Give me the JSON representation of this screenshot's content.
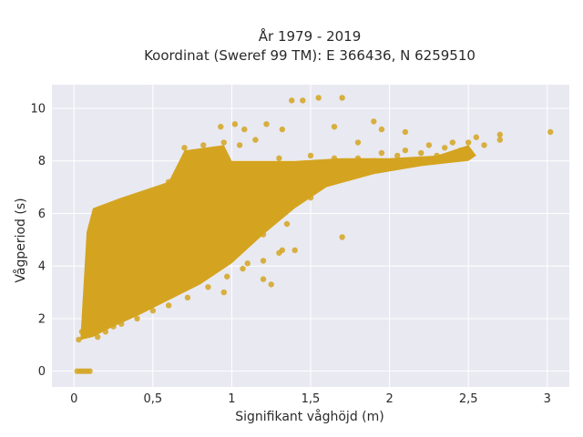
{
  "chart_data": {
    "type": "scatter",
    "title_lines": [
      "År 1979 - 2019",
      "Koordinat (Sweref 99 TM): E 366436, N 6259510"
    ],
    "xlabel": "Signifikant våghöjd (m)",
    "ylabel": "Vågperiod (s)",
    "xlim": [
      -0.14,
      3.14
    ],
    "ylim": [
      -0.6,
      10.9
    ],
    "xticks": [
      0,
      0.5,
      1,
      1.5,
      2,
      2.5,
      3
    ],
    "xtick_labels": [
      "0",
      "0,5",
      "1",
      "1,5",
      "2",
      "2,5",
      "3"
    ],
    "yticks": [
      0,
      2,
      4,
      6,
      8,
      10
    ],
    "ytick_labels": [
      "0",
      "2",
      "4",
      "6",
      "8",
      "10"
    ],
    "grid": true,
    "legend": "none",
    "colors": {
      "marker": "#d4a420",
      "plot_bg": "#e9e9f1",
      "grid": "#ffffff"
    },
    "points": [
      [
        0.02,
        0
      ],
      [
        0.04,
        0
      ],
      [
        0.06,
        0
      ],
      [
        0.08,
        0
      ],
      [
        0.1,
        0
      ],
      [
        0.03,
        1.2
      ],
      [
        0.05,
        1.5
      ],
      [
        0.07,
        2.0
      ],
      [
        0.08,
        2.6
      ],
      [
        0.09,
        3.2
      ],
      [
        0.1,
        3.8
      ],
      [
        0.11,
        4.5
      ],
      [
        0.12,
        5.2
      ],
      [
        0.13,
        5.8
      ],
      [
        0.14,
        6.0
      ],
      [
        0.15,
        1.3
      ],
      [
        0.15,
        2.2
      ],
      [
        0.16,
        3.0
      ],
      [
        0.17,
        4.0
      ],
      [
        0.18,
        5.0
      ],
      [
        0.19,
        5.8
      ],
      [
        0.2,
        6.2
      ],
      [
        0.2,
        1.5
      ],
      [
        0.25,
        1.7
      ],
      [
        0.25,
        2.8
      ],
      [
        0.26,
        3.8
      ],
      [
        0.27,
        4.8
      ],
      [
        0.28,
        5.6
      ],
      [
        0.3,
        6.3
      ],
      [
        0.3,
        1.8
      ],
      [
        0.32,
        2.5
      ],
      [
        0.35,
        3.5
      ],
      [
        0.36,
        4.5
      ],
      [
        0.38,
        5.5
      ],
      [
        0.4,
        6.4
      ],
      [
        0.4,
        2.0
      ],
      [
        0.42,
        3.0
      ],
      [
        0.45,
        4.2
      ],
      [
        0.47,
        5.0
      ],
      [
        0.5,
        6.5
      ],
      [
        0.5,
        2.3
      ],
      [
        0.52,
        3.4
      ],
      [
        0.55,
        4.6
      ],
      [
        0.57,
        5.6
      ],
      [
        0.6,
        6.8
      ],
      [
        0.6,
        7.2
      ],
      [
        0.6,
        2.5
      ],
      [
        0.62,
        3.6
      ],
      [
        0.65,
        4.8
      ],
      [
        0.67,
        5.8
      ],
      [
        0.7,
        6.9
      ],
      [
        0.7,
        8.5
      ],
      [
        0.72,
        2.8
      ],
      [
        0.75,
        3.9
      ],
      [
        0.77,
        5.0
      ],
      [
        0.8,
        6.0
      ],
      [
        0.8,
        7.0
      ],
      [
        0.82,
        8.6
      ],
      [
        0.85,
        3.2
      ],
      [
        0.87,
        4.3
      ],
      [
        0.9,
        5.3
      ],
      [
        0.9,
        6.2
      ],
      [
        0.92,
        7.1
      ],
      [
        0.95,
        8.7
      ],
      [
        0.97,
        3.6
      ],
      [
        1.0,
        4.6
      ],
      [
        1.0,
        5.6
      ],
      [
        1.02,
        6.4
      ],
      [
        1.05,
        7.2
      ],
      [
        1.05,
        8.6
      ],
      [
        1.07,
        3.9
      ],
      [
        1.1,
        4.9
      ],
      [
        1.1,
        5.9
      ],
      [
        1.12,
        6.6
      ],
      [
        1.15,
        7.3
      ],
      [
        1.15,
        8.8
      ],
      [
        1.2,
        4.2
      ],
      [
        1.2,
        5.2
      ],
      [
        1.22,
        6.1
      ],
      [
        1.25,
        6.8
      ],
      [
        1.3,
        7.4
      ],
      [
        1.3,
        8.1
      ],
      [
        1.32,
        4.6
      ],
      [
        1.35,
        5.6
      ],
      [
        1.38,
        6.3
      ],
      [
        1.4,
        7.0
      ],
      [
        1.45,
        7.5
      ],
      [
        1.5,
        8.2
      ],
      [
        1.5,
        6.6
      ],
      [
        1.55,
        7.2
      ],
      [
        1.6,
        7.7
      ],
      [
        1.65,
        8.1
      ],
      [
        1.7,
        7.5
      ],
      [
        1.75,
        7.9
      ],
      [
        1.8,
        8.1
      ],
      [
        1.85,
        7.7
      ],
      [
        1.9,
        8.0
      ],
      [
        1.95,
        8.3
      ],
      [
        2.0,
        7.9
      ],
      [
        2.05,
        8.2
      ],
      [
        2.1,
        8.4
      ],
      [
        2.15,
        8.0
      ],
      [
        2.2,
        8.3
      ],
      [
        2.25,
        8.6
      ],
      [
        2.3,
        8.2
      ],
      [
        2.35,
        8.5
      ],
      [
        2.4,
        8.7
      ],
      [
        2.45,
        8.4
      ],
      [
        2.5,
        8.7
      ],
      [
        2.55,
        8.9
      ],
      [
        2.6,
        8.6
      ],
      [
        2.7,
        9.0
      ],
      [
        2.7,
        8.8
      ],
      [
        3.02,
        9.1
      ],
      [
        1.02,
        9.4
      ],
      [
        1.08,
        9.2
      ],
      [
        0.93,
        9.3
      ],
      [
        1.22,
        9.4
      ],
      [
        1.32,
        9.2
      ],
      [
        1.38,
        10.3
      ],
      [
        1.45,
        10.3
      ],
      [
        1.55,
        10.4
      ],
      [
        1.7,
        10.4
      ],
      [
        1.65,
        9.3
      ],
      [
        1.9,
        9.5
      ],
      [
        1.8,
        8.7
      ],
      [
        1.95,
        9.2
      ],
      [
        2.1,
        9.1
      ],
      [
        1.7,
        5.1
      ],
      [
        1.4,
        4.6
      ],
      [
        1.3,
        4.5
      ],
      [
        1.1,
        4.1
      ],
      [
        1.2,
        3.5
      ],
      [
        1.25,
        3.3
      ],
      [
        0.95,
        3.0
      ]
    ]
  }
}
